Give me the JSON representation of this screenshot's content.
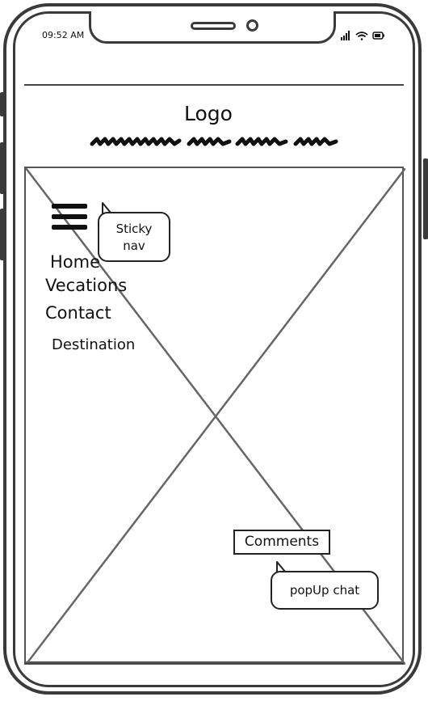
{
  "status_bar": {
    "time": "09:52 AM",
    "icons": [
      "signal-icon",
      "wifi-icon",
      "battery-icon"
    ]
  },
  "header": {
    "logo": "Logo"
  },
  "nav": {
    "menu_icon": "hamburger-menu-icon",
    "items": [
      {
        "label": "Home"
      },
      {
        "label": "Vecations"
      },
      {
        "label": "Contact"
      },
      {
        "label": "Destination"
      }
    ]
  },
  "annotations": {
    "sticky_nav": [
      "Sticky",
      "nav"
    ],
    "popup_chat": "popUp chat"
  },
  "buttons": {
    "comments": "Comments"
  },
  "colors": {
    "frame": "#3a3a3a",
    "ink": "#111111",
    "placeholder_line": "#555555"
  }
}
